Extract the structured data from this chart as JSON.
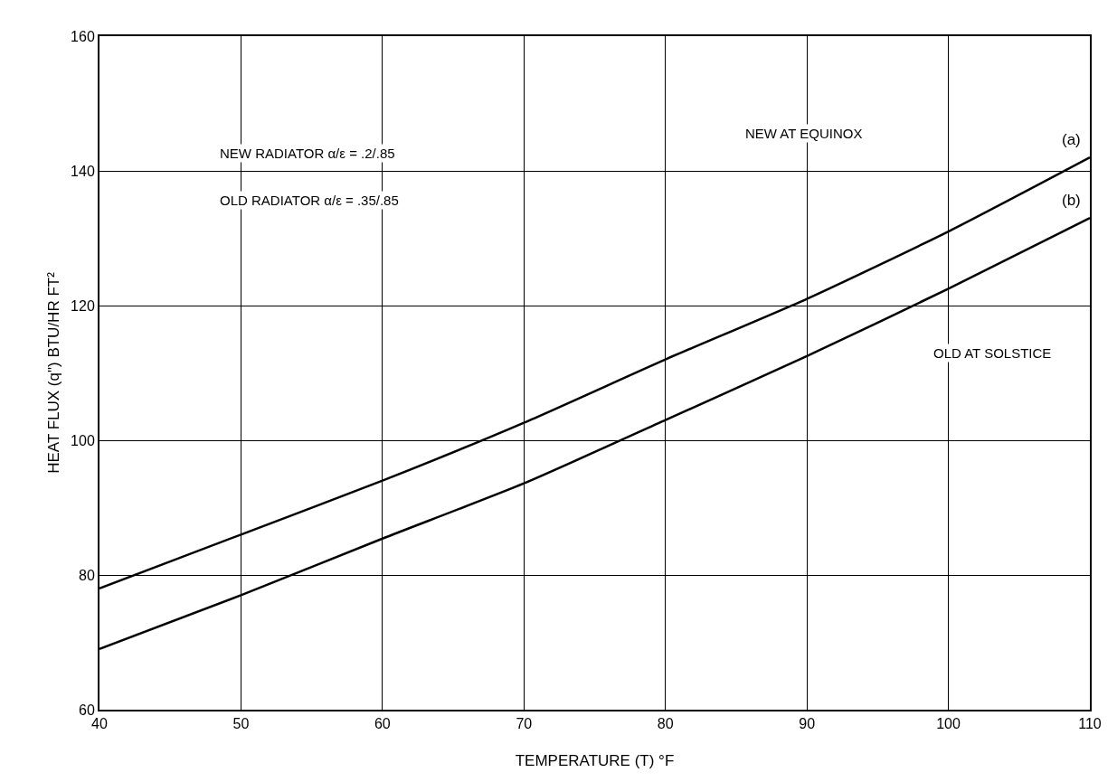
{
  "chart_data": {
    "type": "line",
    "xlabel": "TEMPERATURE (T) °F",
    "ylabel": "HEAT FLUX (q\") BTU/HR FT²",
    "x": [
      40,
      50,
      60,
      70,
      80,
      90,
      100,
      110
    ],
    "series": [
      {
        "name": "(a)",
        "color": "#000000",
        "values": [
          78,
          86,
          94,
          102.6,
          112,
          121,
          131,
          142
        ]
      },
      {
        "name": "(b)",
        "color": "#000000",
        "values": [
          69,
          77,
          85.4,
          93.6,
          103,
          112.5,
          122.5,
          133
        ]
      }
    ],
    "annotations": [
      "NEW RADIATOR α/ε = .2/.85",
      "OLD RADIATOR α/ε = .35/.85",
      "NEW AT EQUINOX",
      "OLD AT SOLSTICE"
    ],
    "xlim": [
      40,
      110
    ],
    "xticks": [
      40,
      50,
      60,
      70,
      80,
      90,
      100,
      110
    ],
    "ylim": [
      60,
      160
    ],
    "yticks": [
      60,
      80,
      100,
      120,
      140,
      160
    ],
    "grid": true,
    "legend": false,
    "marker": "none",
    "line_style": "solid"
  }
}
